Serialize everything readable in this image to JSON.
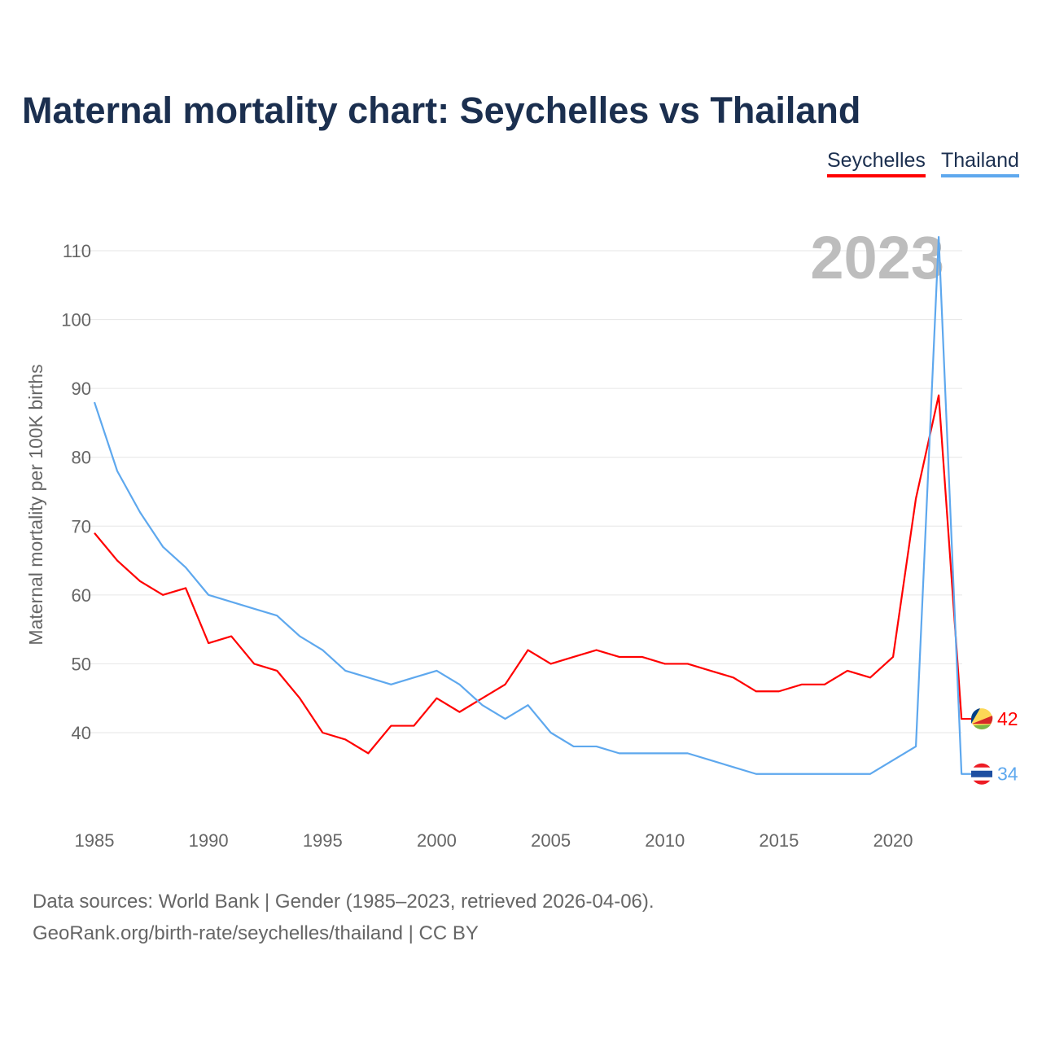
{
  "chart_data": {
    "type": "line",
    "title": "Maternal mortality chart: Seychelles vs Thailand",
    "ylabel": "Maternal mortality per 100K births",
    "xlabel": "",
    "year_watermark": "2023",
    "ylim": [
      28,
      112
    ],
    "xlim": [
      1985,
      2023
    ],
    "yticks": [
      40,
      50,
      60,
      70,
      80,
      90,
      100,
      110
    ],
    "xticks": [
      1985,
      1990,
      1995,
      2000,
      2005,
      2010,
      2015,
      2020
    ],
    "grid": true,
    "legend_position": "top-right",
    "x": [
      1985,
      1986,
      1987,
      1988,
      1989,
      1990,
      1991,
      1992,
      1993,
      1994,
      1995,
      1996,
      1997,
      1998,
      1999,
      2000,
      2001,
      2002,
      2003,
      2004,
      2005,
      2006,
      2007,
      2008,
      2009,
      2010,
      2011,
      2012,
      2013,
      2014,
      2015,
      2016,
      2017,
      2018,
      2019,
      2020,
      2021,
      2022,
      2023
    ],
    "series": [
      {
        "name": "Seychelles",
        "color": "#ff0000",
        "end_label": "42",
        "values": [
          69,
          65,
          62,
          60,
          61,
          53,
          54,
          50,
          49,
          45,
          40,
          39,
          37,
          41,
          41,
          45,
          43,
          45,
          47,
          52,
          50,
          51,
          52,
          51,
          51,
          50,
          50,
          49,
          48,
          46,
          46,
          47,
          47,
          49,
          48,
          51,
          74,
          89,
          42
        ]
      },
      {
        "name": "Thailand",
        "color": "#5ea8ee",
        "end_label": "34",
        "values": [
          88,
          78,
          72,
          67,
          64,
          60,
          59,
          58,
          57,
          54,
          52,
          49,
          48,
          47,
          48,
          49,
          47,
          44,
          42,
          44,
          40,
          38,
          38,
          37,
          37,
          37,
          37,
          36,
          35,
          34,
          34,
          34,
          34,
          34,
          34,
          36,
          38,
          112,
          34
        ]
      }
    ]
  },
  "source": {
    "line1": "Data sources: World Bank | Gender (1985–2023, retrieved 2026-04-06).",
    "line2": "GeoRank.org/birth-rate/seychelles/thailand | CC BY"
  }
}
